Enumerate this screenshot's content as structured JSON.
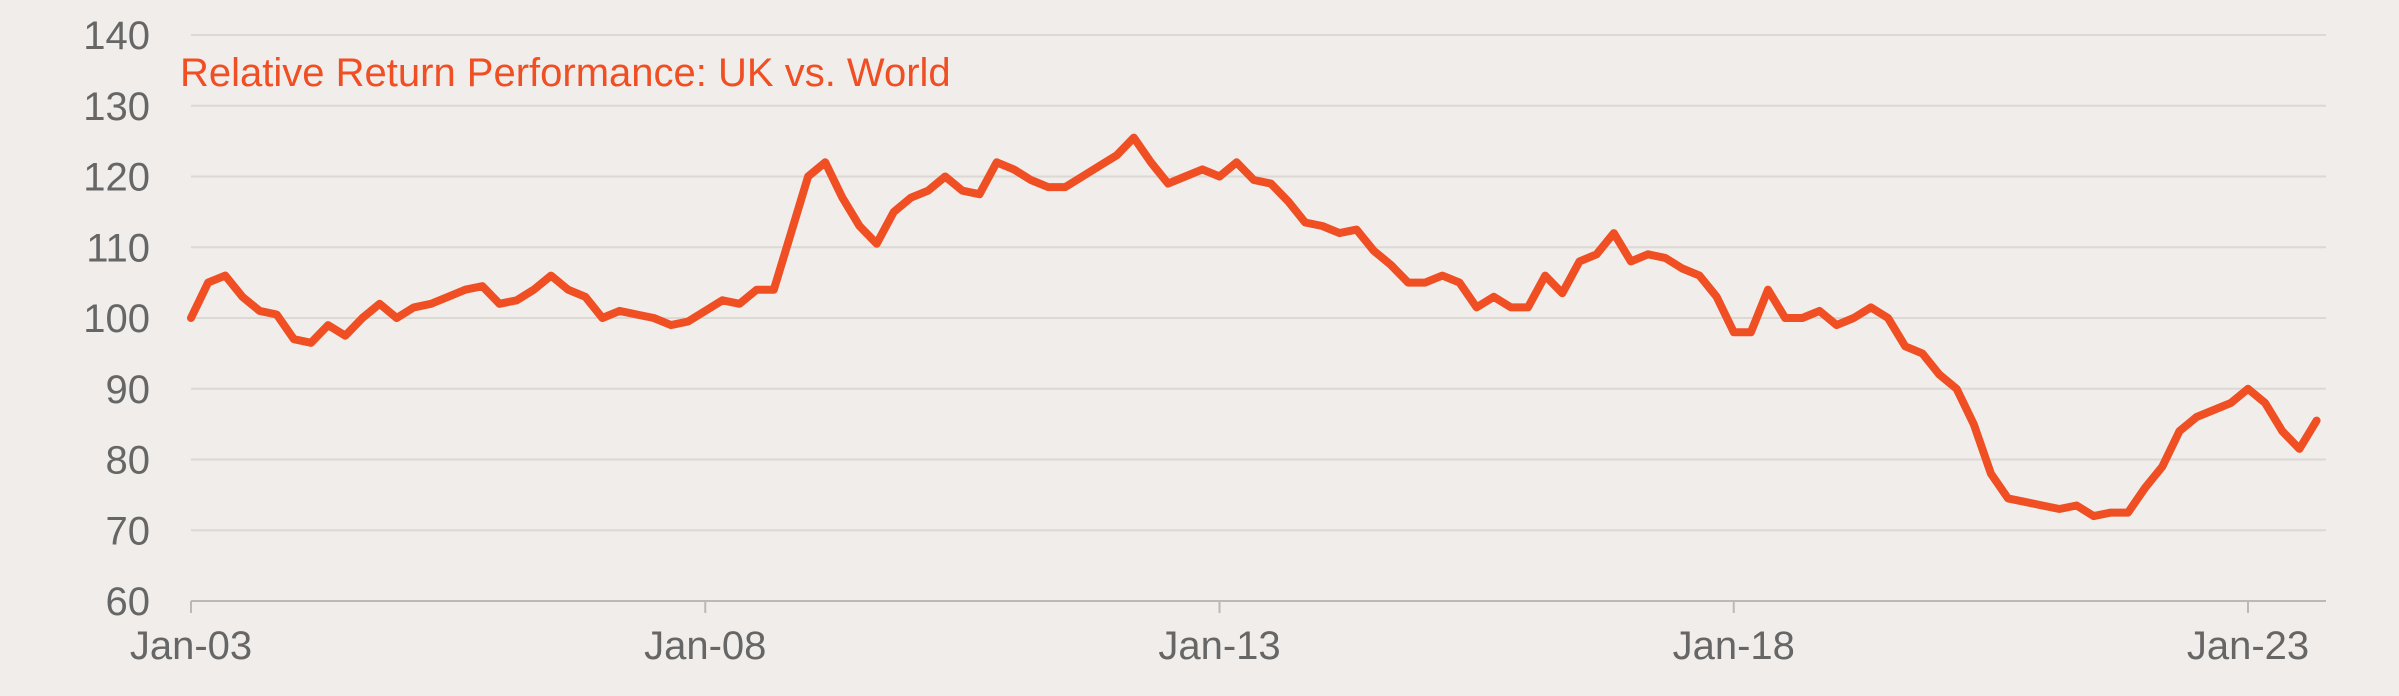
{
  "chart_data": {
    "type": "line",
    "title": "Relative Return Performance: UK vs. World",
    "x": [
      "Jan-03",
      "Mar-03",
      "May-03",
      "Jul-03",
      "Sep-03",
      "Nov-03",
      "Jan-04",
      "Mar-04",
      "May-04",
      "Jul-04",
      "Sep-04",
      "Nov-04",
      "Jan-05",
      "Mar-05",
      "May-05",
      "Jul-05",
      "Sep-05",
      "Nov-05",
      "Jan-06",
      "Mar-06",
      "May-06",
      "Jul-06",
      "Sep-06",
      "Nov-06",
      "Jan-07",
      "Mar-07",
      "May-07",
      "Jul-07",
      "Sep-07",
      "Nov-07",
      "Jan-08",
      "Mar-08",
      "May-08",
      "Jul-08",
      "Sep-08",
      "Nov-08",
      "Jan-09",
      "Mar-09",
      "May-09",
      "Jul-09",
      "Sep-09",
      "Nov-09",
      "Jan-10",
      "Mar-10",
      "May-10",
      "Jul-10",
      "Sep-10",
      "Nov-10",
      "Jan-11",
      "Mar-11",
      "May-11",
      "Jul-11",
      "Sep-11",
      "Nov-11",
      "Jan-12",
      "Mar-12",
      "May-12",
      "Jul-12",
      "Sep-12",
      "Nov-12",
      "Jan-13",
      "Mar-13",
      "May-13",
      "Jul-13",
      "Sep-13",
      "Nov-13",
      "Jan-14",
      "Mar-14",
      "May-14",
      "Jul-14",
      "Sep-14",
      "Nov-14",
      "Jan-15",
      "Mar-15",
      "May-15",
      "Jul-15",
      "Sep-15",
      "Nov-15",
      "Jan-16",
      "Mar-16",
      "May-16",
      "Jul-16",
      "Sep-16",
      "Nov-16",
      "Jan-17",
      "Mar-17",
      "May-17",
      "Jul-17",
      "Sep-17",
      "Nov-17",
      "Jan-18",
      "Mar-18",
      "May-18",
      "Jul-18",
      "Sep-18",
      "Nov-18",
      "Jan-19",
      "Mar-19",
      "May-19",
      "Jul-19",
      "Sep-19",
      "Nov-19",
      "Jan-20",
      "Mar-20",
      "May-20",
      "Jul-20",
      "Sep-20",
      "Nov-20",
      "Jan-21",
      "Mar-21",
      "May-21",
      "Jul-21",
      "Sep-21",
      "Nov-21",
      "Jan-22",
      "Mar-22",
      "May-22",
      "Jul-22",
      "Sep-22",
      "Nov-22",
      "Jan-23",
      "Mar-23",
      "May-23",
      "Jul-23",
      "Sep-23"
    ],
    "values": [
      100,
      105,
      106,
      103,
      101,
      100.5,
      97,
      96.5,
      99,
      97.5,
      100,
      102,
      100,
      101.5,
      102,
      103,
      104,
      104.5,
      102,
      102.5,
      104,
      106,
      104,
      103,
      100,
      101,
      100.5,
      100,
      99,
      99.5,
      101,
      102.5,
      102,
      104,
      104,
      112,
      120,
      122,
      117,
      113,
      110.5,
      115,
      117,
      118,
      120,
      118,
      117.5,
      122,
      121,
      119.5,
      118.5,
      118.5,
      120,
      121.5,
      123,
      125.5,
      122,
      119,
      120,
      121,
      120,
      122,
      119.5,
      119,
      116.5,
      113.5,
      113,
      112,
      112.5,
      109.5,
      107.5,
      105,
      105,
      106,
      105,
      101.5,
      103,
      101.5,
      101.5,
      106,
      103.5,
      108,
      109,
      112,
      108,
      109,
      108.5,
      107,
      106,
      103,
      98,
      98,
      104,
      100,
      100,
      101,
      99,
      100,
      101.5,
      100,
      96,
      95,
      92,
      90,
      85,
      78,
      74.5,
      74,
      73.5,
      73,
      73.5,
      72,
      72.5,
      72.5,
      76,
      79,
      84,
      86,
      87,
      88,
      90,
      88,
      84,
      81.5,
      85.5
    ],
    "color": "#f04e23",
    "xticks": [
      "Jan-03",
      "Jan-08",
      "Jan-13",
      "Jan-18",
      "Jan-23"
    ],
    "ylim": [
      60,
      140
    ],
    "yticks": [
      60,
      70,
      80,
      90,
      100,
      110,
      120,
      130,
      140
    ],
    "grid": true
  }
}
